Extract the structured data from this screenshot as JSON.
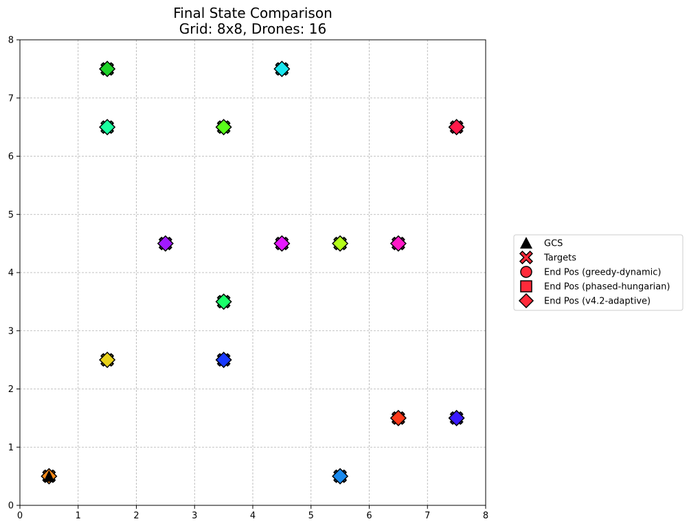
{
  "chart_data": {
    "type": "scatter",
    "title_line1": "Final State Comparison",
    "title_line2": "Grid: 8x8, Drones: 16",
    "xlim": [
      0,
      8
    ],
    "ylim": [
      0,
      8
    ],
    "xticks": [
      0,
      1,
      2,
      3,
      4,
      5,
      6,
      7,
      8
    ],
    "yticks": [
      0,
      1,
      2,
      3,
      4,
      5,
      6,
      7,
      8
    ],
    "grid": true,
    "legend_position": "outside right, vertically centered",
    "legend": [
      {
        "label": "GCS",
        "marker": "triangle",
        "color": "#000000"
      },
      {
        "label": "Targets",
        "marker": "x",
        "color": "#ff2a3a"
      },
      {
        "label": "End Pos (greedy-dynamic)",
        "marker": "circle",
        "color": "#ff2a3a"
      },
      {
        "label": "End Pos (phased-hungarian)",
        "marker": "square",
        "color": "#ff2a3a"
      },
      {
        "label": "End Pos (v4.2-adaptive)",
        "marker": "diamond",
        "color": "#ff2a3a"
      }
    ],
    "gcs": {
      "x": 0.5,
      "y": 0.5
    },
    "drones": [
      {
        "x": 0.5,
        "y": 0.5,
        "color": "#ff8c1a"
      },
      {
        "x": 1.5,
        "y": 7.5,
        "color": "#1ed32a"
      },
      {
        "x": 1.5,
        "y": 6.5,
        "color": "#1affa0"
      },
      {
        "x": 1.5,
        "y": 2.5,
        "color": "#e8d21a"
      },
      {
        "x": 2.5,
        "y": 4.5,
        "color": "#a21aff"
      },
      {
        "x": 3.5,
        "y": 6.5,
        "color": "#5aff1a"
      },
      {
        "x": 3.5,
        "y": 3.5,
        "color": "#1aff6a"
      },
      {
        "x": 3.5,
        "y": 2.5,
        "color": "#1a3aff"
      },
      {
        "x": 4.5,
        "y": 7.5,
        "color": "#1ae6ee"
      },
      {
        "x": 4.5,
        "y": 4.5,
        "color": "#e61aff"
      },
      {
        "x": 5.5,
        "y": 4.5,
        "color": "#b4ff1a"
      },
      {
        "x": 5.5,
        "y": 0.5,
        "color": "#1a8aee"
      },
      {
        "x": 6.5,
        "y": 4.5,
        "color": "#ff1ac8"
      },
      {
        "x": 6.5,
        "y": 1.5,
        "color": "#ff3a1a"
      },
      {
        "x": 7.5,
        "y": 6.5,
        "color": "#ff1a4a"
      },
      {
        "x": 7.5,
        "y": 1.5,
        "color": "#3a1aff"
      }
    ]
  }
}
